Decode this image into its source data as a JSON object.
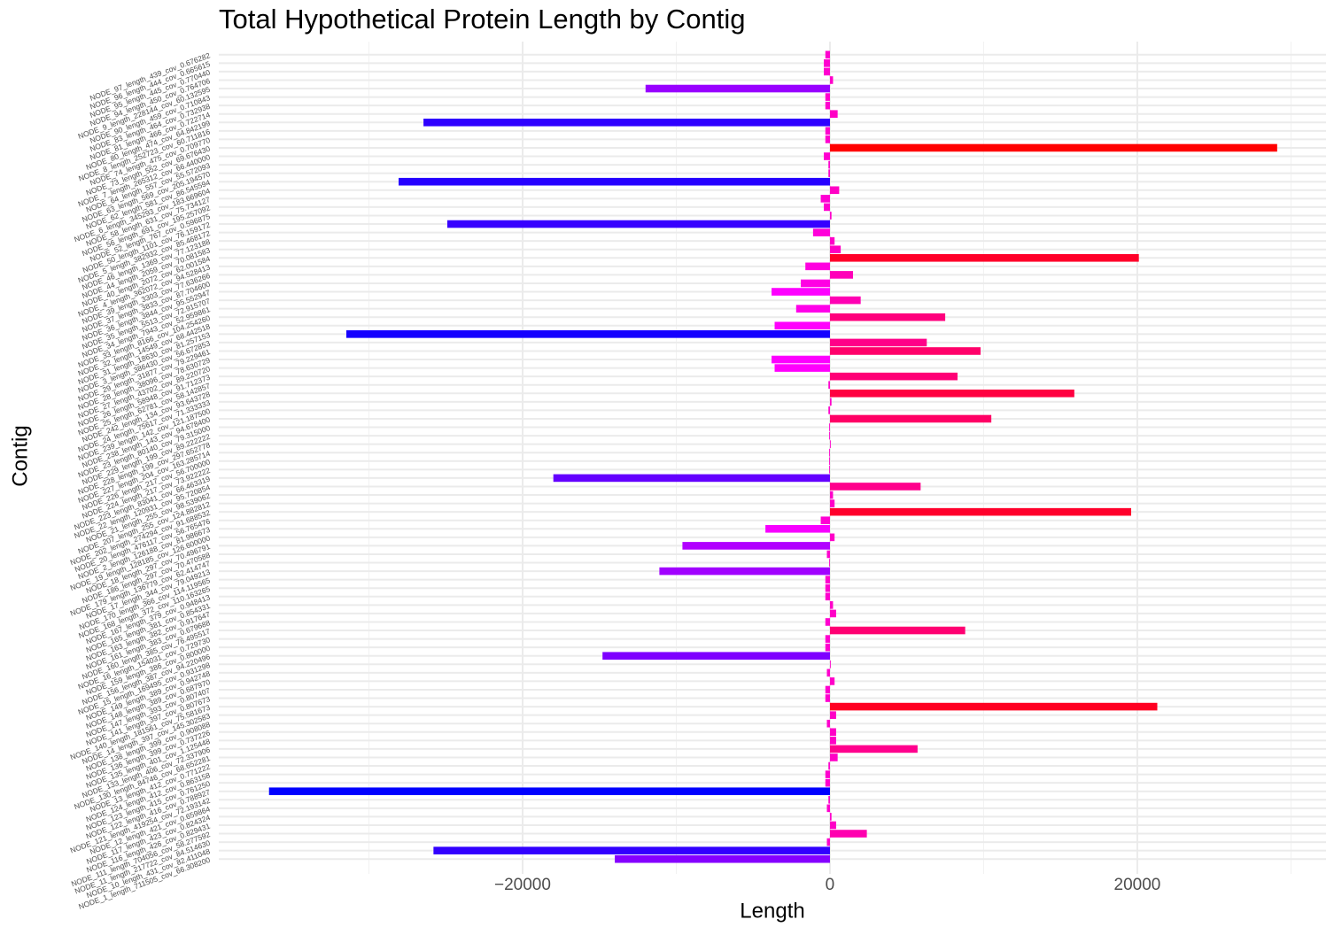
{
  "chart_data": {
    "type": "barh",
    "title": "Total Hypothetical Protein Length by Contig",
    "xlabel": "Length",
    "ylabel": "Contig",
    "categories": [
      "NODE_97_length_439_cov_0.676282",
      "NODE_96_length_444_cov_0.665615",
      "NODE_95_length_445_cov_0.770440",
      "NODE_94_length_450_cov_0.764706",
      "NODE_9_length_228144_cov_60.132595",
      "NODE_90_length_459_cov_0.710843",
      "NODE_83_length_464_cov_0.732938",
      "NODE_81_length_466_cov_0.722714",
      "NODE_80_length_474_cov_64.842199",
      "NODE_8_length_252723_cov_60.711816",
      "NODE_74_length_475_cov_0.709770",
      "NODE_73_length_552_cov_69.676430",
      "NODE_7_length_265312_cov_66.440000",
      "NODE_64_length_557_cov_55.572093",
      "NODE_63_length_569_cov_205.194570",
      "NODE_62_length_581_cov_86.545594",
      "NODE_6_length_345293_cov_183.669604",
      "NODE_58_length_631_cov_75.734127",
      "NODE_56_length_691_cov_195.257092",
      "NODE_52_length_767_cov_0.596875",
      "NODE_50_length_1101_cov_76.159172",
      "NODE_5_length_382932_cov_85.468172",
      "NODE_46_length_1369_cov_77.123188",
      "NODE_44_length_2059_cov_70.081583",
      "NODE_40_length_2072_cov_62.001584",
      "NODE_4_length_362072_cov_94.528413",
      "NODE_39_length_3303_cov_77.636266",
      "NODE_37_length_3833_cov_87.704600",
      "NODE_36_length_3844_cov_95.552947",
      "NODE_35_length_5513_cov_72.915707",
      "NODE_34_length_7943_cov_52.959861",
      "NODE_33_length_8166_cov_104.254260",
      "NODE_32_length_14549_cov_68.442518",
      "NODE_31_length_18630_cov_81.257153",
      "NODE_3_length_386430_cov_56.672853",
      "NODE_29_length_31877_cov_79.229461",
      "NODE_28_length_38096_cov_78.630729",
      "NODE_27_length_43702_cov_89.220720",
      "NODE_26_length_58948_cov_91.712373",
      "NODE_25_length_62781_cov_58.142857",
      "NODE_242_length_134_cov_93.643728",
      "NODE_24_length_75617_cov_71.333333",
      "NODE_239_length_142_cov_121.187500",
      "NODE_238_length_143_cov_94.678400",
      "NODE_23_length_80140_cov_79.315000",
      "NODE_229_length_199_cov_89.222222",
      "NODE_228_length_199_cov_297.652778",
      "NODE_227_length_204_cov_163.285714",
      "NODE_226_length_217_cov_56.700000",
      "NODE_224_length_217_cov_73.922222",
      "NODE_223_length_83041_cov_66.463319",
      "NODE_22_length_120931_cov_95.720854",
      "NODE_21_length_255_cov_98.539062",
      "NODE_207_length_255_cov_124.882812",
      "NODE_202_length_274294_cov_91.688532",
      "NODE_20_length_476117_cov_56.765476",
      "NODE_2_length_126188_cov_81.986673",
      "NODE_19_length_128185_cov_126.600000",
      "NODE_18_length_297_cov_70.496791",
      "NODE_186_length_297_cov_70.470588",
      "NODE_179_length_136779_cov_62.414747",
      "NODE_17_length_344_cov_79.049213",
      "NODE_170_length_366_cov_114.119565",
      "NODE_168_length_372_cov_110.163265",
      "NODE_167_length_379_cov_0.948413",
      "NODE_165_length_381_cov_0.854331",
      "NODE_163_length_382_cov_0.917647",
      "NODE_161_length_383_cov_0.679688",
      "NODE_160_length_385_cov_76.495517",
      "NODE_16_length_154031_cov_0.729730",
      "NODE_159_length_386_cov_0.800000",
      "NODE_156_length_387_cov_94.220496",
      "NODE_15_length_169495_cov_0.931298",
      "NODE_149_length_389_cov_0.942748",
      "NODE_148_length_389_cov_0.687970",
      "NODE_147_length_393_cov_0.807407",
      "NODE_141_length_397_cov_0.807673",
      "NODE_140_length_181561_cov_75.581673",
      "NODE_14_length_397_cov_145.302583",
      "NODE_138_length_399_cov_0.908088",
      "NODE_136_length_399_cov_0.737226",
      "NODE_135_length_401_cov_1.125448",
      "NODE_133_length_406_cov_72.337906",
      "NODE_130_length_84746_cov_68.652281",
      "NODE_13_length_412_cov_0.771222",
      "NODE_124_length_412_cov_0.863158",
      "NODE_123_length_415_cov_0.761250",
      "NODE_122_length_416_cov_0.788927",
      "NODE_121_length_419254_cov_72.193142",
      "NODE_12_length_421_cov_0.659864",
      "NODE_117_length_423_cov_0.824324",
      "NODE_116_length_426_cov_0.829431",
      "NODE_111_length_704056_cov_58.277592",
      "NODE_11_length_217722_cov_84.514630",
      "NODE_10_length_431_cov_82.411048",
      "NODE_1_length_711505_cov_66.308200"
    ],
    "values": [
      -300,
      -400,
      -400,
      200,
      -12000,
      -300,
      -300,
      500,
      -26450,
      -300,
      -300,
      29100,
      -400,
      -100,
      -100,
      -28070,
      600,
      -600,
      -400,
      100,
      -24900,
      -1100,
      300,
      700,
      20100,
      -1600,
      1500,
      -1900,
      -3800,
      2000,
      -2200,
      7500,
      -3600,
      -31470,
      6300,
      9800,
      -3800,
      -3600,
      8300,
      -100,
      15900,
      100,
      -100,
      10500,
      -50,
      -50,
      50,
      -50,
      -50,
      -50,
      -18000,
      5900,
      200,
      300,
      19600,
      -600,
      -4200,
      300,
      -9600,
      -200,
      -50,
      -11100,
      -300,
      -300,
      -300,
      200,
      400,
      -300,
      8800,
      -300,
      -300,
      -14800,
      50,
      -200,
      300,
      -300,
      -300,
      21300,
      400,
      -200,
      400,
      400,
      5700,
      500,
      -100,
      -300,
      -300,
      -36500,
      -100,
      -200,
      100,
      400,
      2400,
      -200,
      -25800,
      -14000
    ],
    "color_low": "#0000ff",
    "color_high": "#ff0000",
    "xlim": [
      -39770,
      32280
    ],
    "xticks": [
      {
        "value": -20000,
        "label": "−20000"
      },
      0,
      20000
    ],
    "xminor": [
      -30000,
      -10000,
      10000,
      30000
    ],
    "grid": true
  }
}
